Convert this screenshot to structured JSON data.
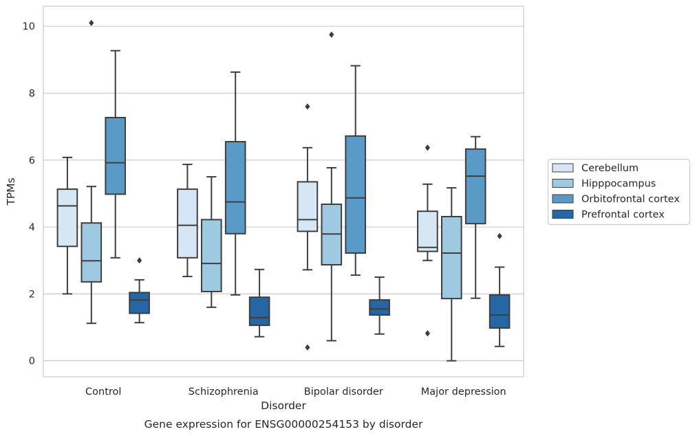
{
  "chart_data": {
    "type": "box",
    "title": "",
    "caption": "Gene expression for ENSG00000254153 by disorder",
    "xlabel": "Disorder",
    "ylabel": "TPMs",
    "ylim": [
      -0.48,
      10.6
    ],
    "yticks": [
      "0",
      "2",
      "4",
      "6",
      "8",
      "10"
    ],
    "grid": "horizontal",
    "legend_position": "right",
    "categories": [
      "Control",
      "Schizophrenia",
      "Bipolar disorder",
      "Major depression"
    ],
    "series": [
      {
        "name": "Cerebellum",
        "color": "#d6e6f4",
        "boxes": [
          {
            "whislo": 2.0,
            "q1": 3.42,
            "med": 4.63,
            "q3": 5.13,
            "whishi": 6.08,
            "fliers": []
          },
          {
            "whislo": 2.52,
            "q1": 3.08,
            "med": 4.05,
            "q3": 5.13,
            "whishi": 5.87,
            "fliers": []
          },
          {
            "whislo": 2.72,
            "q1": 3.87,
            "med": 4.22,
            "q3": 5.35,
            "whishi": 6.37,
            "fliers": [
              7.6,
              0.4
            ]
          },
          {
            "whislo": 3.0,
            "q1": 3.27,
            "med": 3.39,
            "q3": 4.47,
            "whishi": 5.28,
            "fliers": [
              6.37,
              0.82
            ]
          }
        ]
      },
      {
        "name": "Hipppocampus",
        "color": "#9ecae1",
        "boxes": [
          {
            "whislo": 1.12,
            "q1": 2.36,
            "med": 2.99,
            "q3": 4.12,
            "whishi": 5.21,
            "fliers": [
              10.1
            ]
          },
          {
            "whislo": 1.6,
            "q1": 2.07,
            "med": 2.91,
            "q3": 4.22,
            "whishi": 5.5,
            "fliers": []
          },
          {
            "whislo": 0.6,
            "q1": 2.87,
            "med": 3.79,
            "q3": 4.68,
            "whishi": 5.77,
            "fliers": [
              9.75
            ]
          },
          {
            "whislo": 0.0,
            "q1": 1.86,
            "med": 3.22,
            "q3": 4.31,
            "whishi": 5.17,
            "fliers": []
          }
        ]
      },
      {
        "name": "Orbitofrontal cortex",
        "color": "#5a9ac6",
        "boxes": [
          {
            "whislo": 3.08,
            "q1": 4.98,
            "med": 5.92,
            "q3": 7.27,
            "whishi": 9.27,
            "fliers": []
          },
          {
            "whislo": 1.97,
            "q1": 3.8,
            "med": 4.75,
            "q3": 6.55,
            "whishi": 8.63,
            "fliers": []
          },
          {
            "whislo": 2.56,
            "q1": 3.22,
            "med": 4.87,
            "q3": 6.72,
            "whishi": 8.82,
            "fliers": []
          },
          {
            "whislo": 1.87,
            "q1": 4.1,
            "med": 5.52,
            "q3": 6.33,
            "whishi": 6.7,
            "fliers": []
          }
        ]
      },
      {
        "name": "Prefrontal cortex",
        "color": "#2566a4",
        "boxes": [
          {
            "whislo": 1.14,
            "q1": 1.42,
            "med": 1.82,
            "q3": 2.04,
            "whishi": 2.42,
            "fliers": [
              3.0
            ]
          },
          {
            "whislo": 0.72,
            "q1": 1.06,
            "med": 1.29,
            "q3": 1.9,
            "whishi": 2.73,
            "fliers": []
          },
          {
            "whislo": 0.8,
            "q1": 1.37,
            "med": 1.55,
            "q3": 1.82,
            "whishi": 2.5,
            "fliers": []
          },
          {
            "whislo": 0.43,
            "q1": 0.98,
            "med": 1.37,
            "q3": 1.97,
            "whishi": 2.8,
            "fliers": [
              3.73
            ]
          }
        ]
      }
    ]
  }
}
